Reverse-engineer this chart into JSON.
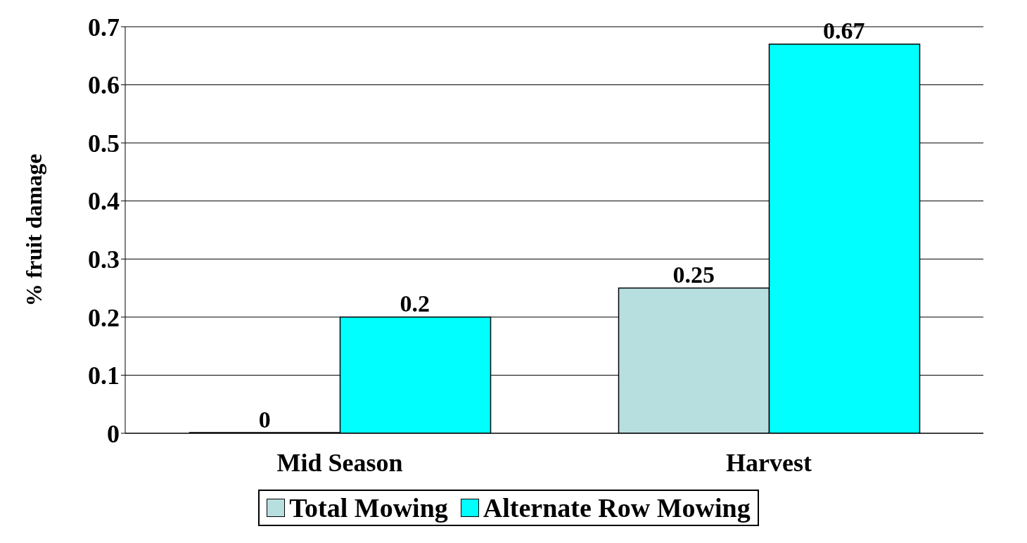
{
  "chart_data": {
    "type": "bar",
    "ylabel": "% fruit damage",
    "categories": [
      "Mid Season",
      "Harvest"
    ],
    "series": [
      {
        "name": "Total Mowing",
        "color": "#b8dfe0",
        "values": [
          0,
          0.25
        ]
      },
      {
        "name": "Alternate Row Mowing",
        "color": "#00ffff",
        "values": [
          0.2,
          0.67
        ]
      }
    ],
    "ylim": [
      0,
      0.7
    ],
    "yticks": [
      0,
      0.1,
      0.2,
      0.3,
      0.4,
      0.5,
      0.6,
      0.7
    ],
    "grid": "y",
    "legend": "bottom",
    "data_labels": true
  }
}
